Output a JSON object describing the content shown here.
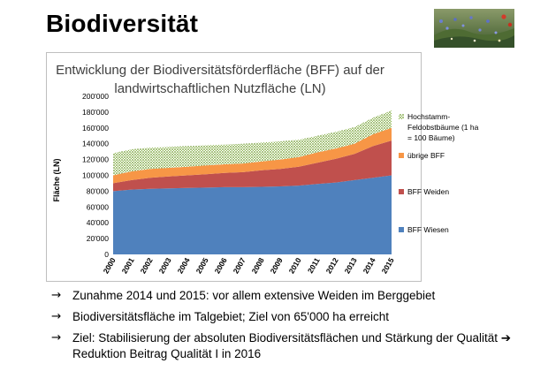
{
  "slide": {
    "title": "Biodiversität",
    "photo_icon": "wildflower-meadow-photo"
  },
  "chart_data": {
    "type": "area",
    "stacked": true,
    "title_lines": [
      "Entwicklung der Biodiversitätsförderfläche (BFF) auf der",
      "landwirtschaftlichen Nutzfläche (LN)"
    ],
    "xlabel": "",
    "ylabel": "Fläche (LN)",
    "ylim": [
      0,
      200000
    ],
    "y_ticks": [
      0,
      20000,
      40000,
      60000,
      80000,
      100000,
      120000,
      140000,
      160000,
      180000,
      200000
    ],
    "y_tick_labels": [
      "0",
      "20'000",
      "40'000",
      "60'000",
      "80'000",
      "100'000",
      "120'000",
      "140'000",
      "160'000",
      "180'000",
      "200'000"
    ],
    "x": [
      "2000",
      "2001",
      "2002",
      "2003",
      "2004",
      "2005",
      "2006",
      "2007",
      "2008",
      "2009",
      "2010",
      "2011",
      "2012",
      "2013",
      "2014",
      "2015"
    ],
    "grid": false,
    "legend_position": "right",
    "series": [
      {
        "name": "BFF Wiesen",
        "color": "#4f81bd",
        "pattern": "solid",
        "values": [
          80000,
          82000,
          83000,
          83500,
          84000,
          84500,
          85000,
          85000,
          85500,
          86000,
          87000,
          89000,
          91000,
          94000,
          97000,
          100000
        ]
      },
      {
        "name": "BFF Weiden",
        "color": "#c0504d",
        "pattern": "solid",
        "values": [
          10000,
          12000,
          14000,
          15000,
          16000,
          17000,
          18000,
          19000,
          21000,
          22000,
          24000,
          27000,
          30000,
          33000,
          40000,
          44000
        ]
      },
      {
        "name": "übrige BFF",
        "color": "#f79646",
        "pattern": "solid",
        "values": [
          10000,
          11000,
          11000,
          11000,
          11000,
          11000,
          11000,
          11000,
          11000,
          12000,
          12000,
          13000,
          13000,
          13000,
          15000,
          16000
        ]
      },
      {
        "name": "Hochstamm-Feldobstbäume (1 ha = 100 Bäume)",
        "legend_lines": [
          "Hochstamm-",
          "Feldobstbäume (1 ha",
          "= 100 Bäume)"
        ],
        "color": "#9bbb59",
        "pattern": "dotted",
        "values": [
          28000,
          28000,
          27000,
          26500,
          26000,
          25500,
          25000,
          25000,
          24000,
          23000,
          22000,
          21000,
          21000,
          21000,
          21000,
          22000
        ]
      }
    ]
  },
  "bullets": [
    {
      "icon": "arrow-right-icon",
      "text": "Zunahme 2014 und 2015: vor allem extensive Weiden im Berggebiet"
    },
    {
      "icon": "arrow-right-icon",
      "text": "Biodiversitätsfläche im Talgebiet; Ziel von 65'000 ha erreicht"
    },
    {
      "icon": "arrow-right-icon",
      "text_before": "Ziel: Stabilisierung der absoluten Biodiversitätsflächen und Stärkung der Qualität",
      "inline_icon": "bold-arrow-right-icon",
      "text_after": "Reduktion Beitrag Qualität I in 2016"
    }
  ]
}
